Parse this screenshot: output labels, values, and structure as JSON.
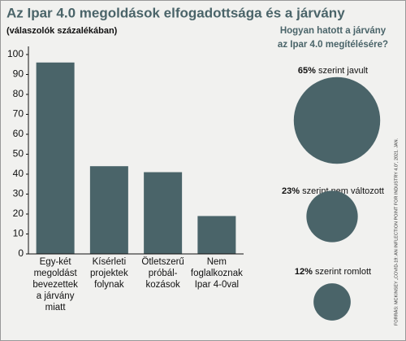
{
  "title": "Az Ipar 4.0 megoldások elfogadottsága és a járvány",
  "source": "FORRÁS: MCKINSEY „COVID-19: AN INFLECTION POINT FOR INDUSTRY 4.0\", 2021. JAN.",
  "chart_data": [
    {
      "type": "bar",
      "subtitle": "(válaszolók százalékában)",
      "categories": [
        [
          "Egy-két",
          "megoldást",
          "bevezettek",
          "a járvány",
          "miatt"
        ],
        [
          "Kísérleti",
          "projektek",
          "folynak"
        ],
        [
          "Ötletszerű",
          "próbál-",
          "kozások"
        ],
        [
          "Nem",
          "foglalkoznak",
          "Ipar 4-0val"
        ]
      ],
      "values": [
        96,
        44,
        41,
        19
      ],
      "color": "#4a6469",
      "ylim": [
        0,
        100
      ],
      "yticks": [
        0,
        10,
        20,
        30,
        40,
        50,
        60,
        70,
        80,
        90,
        100
      ]
    },
    {
      "type": "bubble",
      "title": [
        "Hogyan hatott a járvány",
        "az Ipar 4.0 megítélésére?"
      ],
      "values": [
        65,
        23,
        12
      ],
      "value_labels": [
        "65%",
        "23%",
        "12%"
      ],
      "labels": [
        "szerint javult",
        "szerint nem változott",
        "szerint romlott"
      ],
      "color": "#4a6469"
    }
  ]
}
